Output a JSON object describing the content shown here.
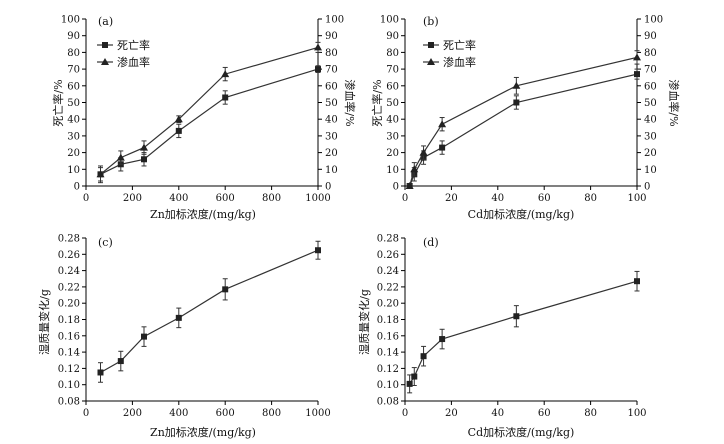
{
  "chart_data": [
    {
      "type": "line",
      "panel_label": "(a)",
      "xlabel": "Zn加标浓度/(mg/kg)",
      "ylabel": "死亡率/%",
      "y2label": "渗血率/%",
      "xlim": [
        0,
        1000
      ],
      "ylim": [
        0,
        100
      ],
      "y2lim": [
        0,
        100
      ],
      "xticks": [
        0,
        200,
        400,
        600,
        800,
        1000
      ],
      "yticks": [
        0,
        10,
        20,
        30,
        40,
        50,
        60,
        70,
        80,
        90,
        100
      ],
      "legend": "top-left",
      "series": [
        {
          "name": "死亡率",
          "marker": "square",
          "x": [
            62.5,
            150,
            250,
            400,
            600,
            1000
          ],
          "values": [
            7,
            13,
            16,
            33,
            53,
            70
          ],
          "errors": [
            5,
            4,
            4,
            4,
            4,
            2
          ]
        },
        {
          "name": "渗血率",
          "marker": "triangle",
          "x": [
            62.5,
            150,
            250,
            400,
            600,
            1000
          ],
          "values": [
            7,
            17,
            23,
            40,
            67,
            83
          ],
          "errors": [
            4,
            4,
            4,
            2,
            4,
            3
          ]
        }
      ]
    },
    {
      "type": "line",
      "panel_label": "(b)",
      "xlabel": "Cd加标浓度/(mg/kg)",
      "ylabel": "死亡率/%",
      "y2label": "渗血率/%",
      "xlim": [
        0,
        100
      ],
      "ylim": [
        0,
        100
      ],
      "y2lim": [
        0,
        100
      ],
      "xticks": [
        0,
        20,
        40,
        60,
        80,
        100
      ],
      "yticks": [
        0,
        10,
        20,
        30,
        40,
        50,
        60,
        70,
        80,
        90,
        100
      ],
      "legend": "top-left",
      "series": [
        {
          "name": "死亡率",
          "marker": "square",
          "x": [
            2,
            4,
            8,
            16,
            48,
            100
          ],
          "values": [
            0,
            7,
            17,
            23,
            50,
            67
          ],
          "errors": [
            1,
            4,
            4,
            4,
            4,
            3
          ]
        },
        {
          "name": "渗血率",
          "marker": "triangle",
          "x": [
            2,
            4,
            8,
            16,
            48,
            100
          ],
          "values": [
            0,
            10,
            20,
            37,
            60,
            77
          ],
          "errors": [
            1,
            4,
            4,
            4,
            5,
            4
          ]
        }
      ]
    },
    {
      "type": "line",
      "panel_label": "(c)",
      "xlabel": "Zn加标浓度/(mg/kg)",
      "ylabel": "湿质量变化/g",
      "xlim": [
        0,
        1000
      ],
      "ylim": [
        0.08,
        0.28
      ],
      "xticks": [
        0,
        200,
        400,
        600,
        800,
        1000
      ],
      "yticks": [
        0.08,
        0.1,
        0.12,
        0.14,
        0.16,
        0.18,
        0.2,
        0.22,
        0.24,
        0.26,
        0.28
      ],
      "yticklabels": [
        "0.08",
        "0.10",
        "0.12",
        "0.14",
        "0.16",
        "0.18",
        "0.20",
        "0.22",
        "0.24",
        "0.26",
        "0.28"
      ],
      "series": [
        {
          "marker": "square",
          "x": [
            62.5,
            150,
            250,
            400,
            600,
            1000
          ],
          "values": [
            0.115,
            0.129,
            0.159,
            0.182,
            0.217,
            0.265
          ],
          "errors": [
            0.012,
            0.012,
            0.012,
            0.012,
            0.013,
            0.011
          ]
        }
      ]
    },
    {
      "type": "line",
      "panel_label": "(d)",
      "xlabel": "Cd加标浓度/(mg/kg)",
      "ylabel": "湿质量变化/g",
      "xlim": [
        0,
        100
      ],
      "ylim": [
        0.08,
        0.28
      ],
      "xticks": [
        0,
        20,
        40,
        60,
        80,
        100
      ],
      "yticks": [
        0.08,
        0.1,
        0.12,
        0.14,
        0.16,
        0.18,
        0.2,
        0.22,
        0.24,
        0.26,
        0.28
      ],
      "yticklabels": [
        "0.08",
        "0.10",
        "0.12",
        "0.14",
        "0.16",
        "0.18",
        "0.20",
        "0.22",
        "0.24",
        "0.26",
        "0.28"
      ],
      "series": [
        {
          "marker": "square",
          "x": [
            2,
            4,
            8,
            16,
            48,
            100
          ],
          "values": [
            0.101,
            0.11,
            0.135,
            0.156,
            0.184,
            0.227
          ],
          "errors": [
            0.011,
            0.011,
            0.012,
            0.012,
            0.013,
            0.012
          ]
        }
      ]
    }
  ]
}
